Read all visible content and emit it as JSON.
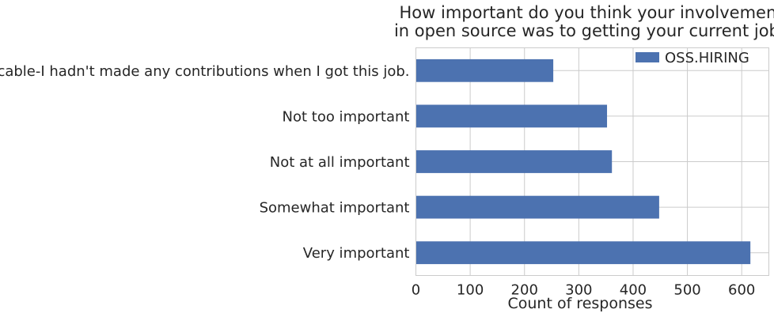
{
  "chart_data": {
    "type": "bar",
    "orientation": "horizontal",
    "title": [
      "How important do you think your involvement",
      "in open source was to getting your current job?"
    ],
    "xlabel": "Count of responses",
    "ylabel": "",
    "xlim": [
      0,
      650
    ],
    "xticks": [
      0,
      100,
      200,
      300,
      400,
      500,
      600
    ],
    "grid": true,
    "legend": {
      "placement": "top-right",
      "entries": [
        "OSS.HIRING"
      ]
    },
    "bar_color": "#4c72b0",
    "categories": [
      "Very important",
      "Somewhat important",
      "Not at all important",
      "Not too important",
      "Not applicable-I hadn't made any contributions when I got this job."
    ],
    "series": [
      {
        "name": "OSS.HIRING",
        "values": [
          616,
          448,
          361,
          352,
          253
        ]
      }
    ]
  }
}
